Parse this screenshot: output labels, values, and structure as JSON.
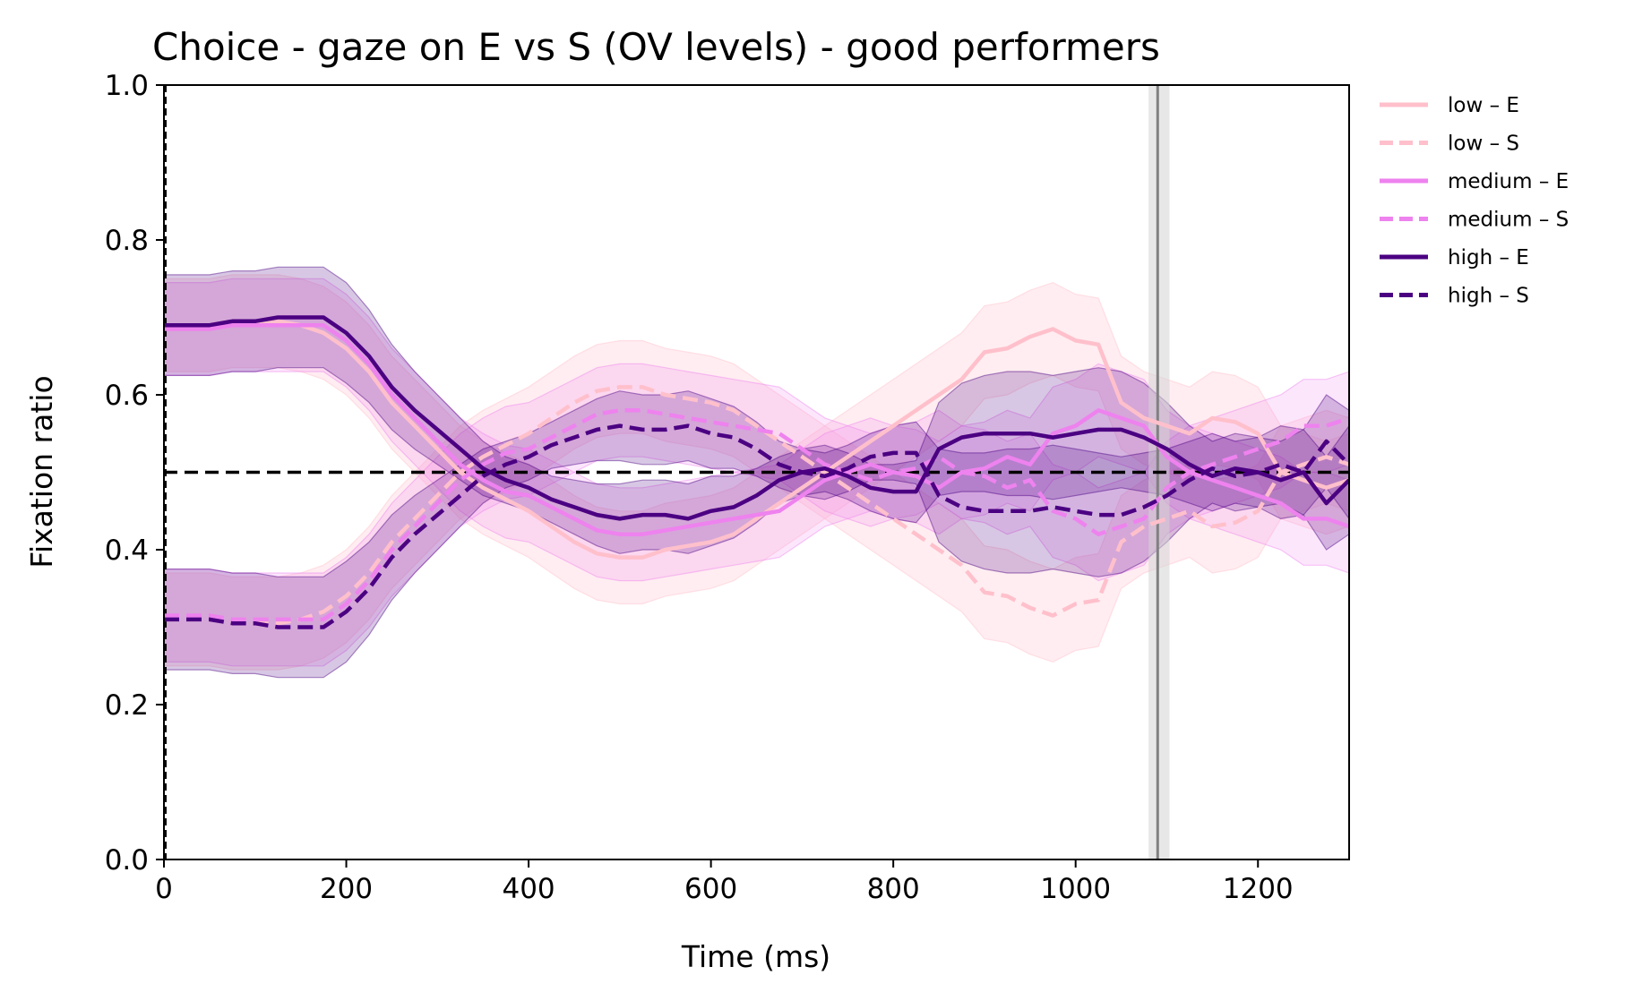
{
  "chart_data": {
    "type": "line",
    "title": "Choice - gaze on E vs S (OV levels) - good performers",
    "xlabel": "Time (ms)",
    "ylabel": "Fixation ratio",
    "xlim": [
      0,
      1300
    ],
    "ylim": [
      0,
      1
    ],
    "xticks": [
      0,
      200,
      400,
      600,
      800,
      1000,
      1200
    ],
    "yticks": [
      0.0,
      0.2,
      0.4,
      0.6,
      0.8,
      1.0
    ],
    "xtick_labels": [
      "0",
      "200",
      "400",
      "600",
      "800",
      "1000",
      "1200"
    ],
    "ytick_labels": [
      "0.0",
      "0.2",
      "0.4",
      "0.6",
      "0.8",
      "1.0"
    ],
    "grid": false,
    "legend_position": "outside-top-right",
    "reference_lines": {
      "horizontal_dashed_y": 0.5,
      "vertical_dashed_x": 0,
      "vertical_solid_x": 1090,
      "vertical_band": [
        1080,
        1103
      ]
    },
    "colors": {
      "low": "#ffc0cb",
      "medium": "#ee82ee",
      "high": "#4b0082",
      "reference": "#000000",
      "marker_line": "#808080",
      "marker_band": "#d3d3d3"
    },
    "x": [
      0,
      25,
      50,
      75,
      100,
      125,
      150,
      175,
      200,
      225,
      250,
      275,
      300,
      325,
      350,
      375,
      400,
      425,
      450,
      475,
      500,
      525,
      550,
      575,
      600,
      625,
      650,
      675,
      700,
      725,
      750,
      775,
      800,
      825,
      850,
      875,
      900,
      925,
      950,
      975,
      1000,
      1025,
      1050,
      1075,
      1100,
      1125,
      1150,
      1175,
      1200,
      1225,
      1250,
      1275,
      1300
    ],
    "series": [
      {
        "name": "low – E",
        "level": "low",
        "style": "solid",
        "values": [
          0.69,
          0.69,
          0.69,
          0.695,
          0.695,
          0.695,
          0.69,
          0.68,
          0.66,
          0.63,
          0.59,
          0.56,
          0.53,
          0.5,
          0.48,
          0.465,
          0.45,
          0.43,
          0.41,
          0.395,
          0.39,
          0.39,
          0.4,
          0.405,
          0.41,
          0.42,
          0.44,
          0.46,
          0.48,
          0.5,
          0.52,
          0.54,
          0.56,
          0.58,
          0.6,
          0.62,
          0.655,
          0.66,
          0.675,
          0.685,
          0.67,
          0.665,
          0.59,
          0.57,
          0.56,
          0.55,
          0.57,
          0.565,
          0.55,
          0.5,
          0.49,
          0.48,
          0.49
        ],
        "band": [
          0.06,
          0.06,
          0.06,
          0.06,
          0.06,
          0.06,
          0.06,
          0.06,
          0.06,
          0.06,
          0.06,
          0.06,
          0.06,
          0.06,
          0.06,
          0.06,
          0.06,
          0.06,
          0.06,
          0.06,
          0.06,
          0.06,
          0.06,
          0.06,
          0.06,
          0.06,
          0.06,
          0.06,
          0.06,
          0.06,
          0.06,
          0.06,
          0.06,
          0.06,
          0.06,
          0.06,
          0.06,
          0.06,
          0.06,
          0.06,
          0.06,
          0.06,
          0.06,
          0.06,
          0.06,
          0.06,
          0.06,
          0.06,
          0.06,
          0.06,
          0.06,
          0.06,
          0.06
        ]
      },
      {
        "name": "low – S",
        "level": "low",
        "style": "dashed",
        "values": [
          0.31,
          0.31,
          0.31,
          0.305,
          0.305,
          0.305,
          0.31,
          0.32,
          0.34,
          0.37,
          0.41,
          0.44,
          0.47,
          0.5,
          0.52,
          0.535,
          0.55,
          0.57,
          0.59,
          0.605,
          0.61,
          0.61,
          0.6,
          0.595,
          0.59,
          0.58,
          0.56,
          0.54,
          0.52,
          0.5,
          0.48,
          0.46,
          0.44,
          0.42,
          0.4,
          0.38,
          0.345,
          0.34,
          0.325,
          0.315,
          0.33,
          0.335,
          0.41,
          0.43,
          0.44,
          0.45,
          0.43,
          0.435,
          0.45,
          0.5,
          0.51,
          0.52,
          0.51
        ],
        "band": [
          0.06,
          0.06,
          0.06,
          0.06,
          0.06,
          0.06,
          0.06,
          0.06,
          0.06,
          0.06,
          0.06,
          0.06,
          0.06,
          0.06,
          0.06,
          0.06,
          0.06,
          0.06,
          0.06,
          0.06,
          0.06,
          0.06,
          0.06,
          0.06,
          0.06,
          0.06,
          0.06,
          0.06,
          0.06,
          0.06,
          0.06,
          0.06,
          0.06,
          0.06,
          0.06,
          0.06,
          0.06,
          0.06,
          0.06,
          0.06,
          0.06,
          0.06,
          0.06,
          0.06,
          0.06,
          0.06,
          0.06,
          0.06,
          0.06,
          0.06,
          0.06,
          0.06,
          0.06
        ]
      },
      {
        "name": "medium – E",
        "level": "medium",
        "style": "solid",
        "values": [
          0.685,
          0.685,
          0.685,
          0.69,
          0.69,
          0.69,
          0.69,
          0.69,
          0.67,
          0.64,
          0.6,
          0.57,
          0.54,
          0.51,
          0.49,
          0.475,
          0.47,
          0.455,
          0.44,
          0.425,
          0.42,
          0.42,
          0.425,
          0.43,
          0.435,
          0.44,
          0.445,
          0.45,
          0.47,
          0.49,
          0.5,
          0.51,
          0.5,
          0.495,
          0.48,
          0.5,
          0.505,
          0.52,
          0.51,
          0.55,
          0.56,
          0.58,
          0.57,
          0.56,
          0.52,
          0.5,
          0.49,
          0.48,
          0.47,
          0.46,
          0.44,
          0.44,
          0.43
        ],
        "band": [
          0.06,
          0.06,
          0.06,
          0.06,
          0.06,
          0.06,
          0.06,
          0.06,
          0.06,
          0.06,
          0.06,
          0.06,
          0.06,
          0.06,
          0.06,
          0.06,
          0.06,
          0.06,
          0.06,
          0.06,
          0.06,
          0.06,
          0.06,
          0.06,
          0.06,
          0.06,
          0.06,
          0.06,
          0.06,
          0.06,
          0.06,
          0.06,
          0.06,
          0.06,
          0.06,
          0.06,
          0.06,
          0.06,
          0.06,
          0.06,
          0.06,
          0.06,
          0.06,
          0.06,
          0.06,
          0.06,
          0.06,
          0.06,
          0.06,
          0.06,
          0.06,
          0.06,
          0.06
        ]
      },
      {
        "name": "medium – S",
        "level": "medium",
        "style": "dashed",
        "values": [
          0.315,
          0.315,
          0.315,
          0.31,
          0.31,
          0.31,
          0.31,
          0.31,
          0.33,
          0.36,
          0.4,
          0.43,
          0.46,
          0.49,
          0.51,
          0.525,
          0.53,
          0.545,
          0.56,
          0.575,
          0.58,
          0.58,
          0.575,
          0.57,
          0.565,
          0.56,
          0.555,
          0.55,
          0.53,
          0.51,
          0.5,
          0.49,
          0.5,
          0.505,
          0.52,
          0.5,
          0.495,
          0.48,
          0.49,
          0.45,
          0.44,
          0.42,
          0.43,
          0.44,
          0.48,
          0.5,
          0.51,
          0.52,
          0.53,
          0.54,
          0.56,
          0.56,
          0.57
        ],
        "band": [
          0.06,
          0.06,
          0.06,
          0.06,
          0.06,
          0.06,
          0.06,
          0.06,
          0.06,
          0.06,
          0.06,
          0.06,
          0.06,
          0.06,
          0.06,
          0.06,
          0.06,
          0.06,
          0.06,
          0.06,
          0.06,
          0.06,
          0.06,
          0.06,
          0.06,
          0.06,
          0.06,
          0.06,
          0.06,
          0.06,
          0.06,
          0.06,
          0.06,
          0.06,
          0.06,
          0.06,
          0.06,
          0.06,
          0.06,
          0.06,
          0.06,
          0.06,
          0.06,
          0.06,
          0.06,
          0.06,
          0.06,
          0.06,
          0.06,
          0.06,
          0.06,
          0.06,
          0.06
        ]
      },
      {
        "name": "high – E",
        "level": "high",
        "style": "solid",
        "values": [
          0.69,
          0.69,
          0.69,
          0.695,
          0.695,
          0.7,
          0.7,
          0.7,
          0.68,
          0.65,
          0.61,
          0.58,
          0.555,
          0.53,
          0.505,
          0.49,
          0.48,
          0.465,
          0.455,
          0.445,
          0.44,
          0.445,
          0.445,
          0.44,
          0.45,
          0.455,
          0.47,
          0.49,
          0.5,
          0.505,
          0.495,
          0.48,
          0.475,
          0.475,
          0.53,
          0.545,
          0.55,
          0.55,
          0.55,
          0.545,
          0.55,
          0.555,
          0.555,
          0.545,
          0.53,
          0.51,
          0.495,
          0.505,
          0.5,
          0.49,
          0.5,
          0.46,
          0.49
        ],
        "band": [
          0.065,
          0.065,
          0.065,
          0.065,
          0.065,
          0.065,
          0.065,
          0.065,
          0.065,
          0.06,
          0.055,
          0.05,
          0.045,
          0.04,
          0.035,
          0.03,
          0.03,
          0.03,
          0.035,
          0.04,
          0.045,
          0.045,
          0.045,
          0.045,
          0.045,
          0.04,
          0.035,
          0.03,
          0.03,
          0.03,
          0.03,
          0.03,
          0.035,
          0.04,
          0.06,
          0.07,
          0.075,
          0.08,
          0.08,
          0.08,
          0.08,
          0.08,
          0.075,
          0.07,
          0.06,
          0.05,
          0.045,
          0.045,
          0.045,
          0.05,
          0.055,
          0.06,
          0.07
        ]
      },
      {
        "name": "high – S",
        "level": "high",
        "style": "dashed",
        "values": [
          0.31,
          0.31,
          0.31,
          0.305,
          0.305,
          0.3,
          0.3,
          0.3,
          0.32,
          0.35,
          0.39,
          0.42,
          0.445,
          0.47,
          0.495,
          0.51,
          0.52,
          0.535,
          0.545,
          0.555,
          0.56,
          0.555,
          0.555,
          0.56,
          0.55,
          0.545,
          0.53,
          0.51,
          0.5,
          0.495,
          0.505,
          0.52,
          0.525,
          0.525,
          0.47,
          0.455,
          0.45,
          0.45,
          0.45,
          0.455,
          0.45,
          0.445,
          0.445,
          0.455,
          0.47,
          0.49,
          0.505,
          0.495,
          0.5,
          0.51,
          0.5,
          0.54,
          0.51
        ],
        "band": [
          0.065,
          0.065,
          0.065,
          0.065,
          0.065,
          0.065,
          0.065,
          0.065,
          0.065,
          0.06,
          0.055,
          0.05,
          0.045,
          0.04,
          0.035,
          0.03,
          0.03,
          0.03,
          0.035,
          0.04,
          0.045,
          0.045,
          0.045,
          0.045,
          0.045,
          0.04,
          0.035,
          0.03,
          0.03,
          0.03,
          0.03,
          0.03,
          0.035,
          0.04,
          0.06,
          0.07,
          0.075,
          0.08,
          0.08,
          0.08,
          0.08,
          0.08,
          0.075,
          0.07,
          0.06,
          0.05,
          0.045,
          0.045,
          0.045,
          0.05,
          0.055,
          0.06,
          0.07
        ]
      }
    ]
  }
}
